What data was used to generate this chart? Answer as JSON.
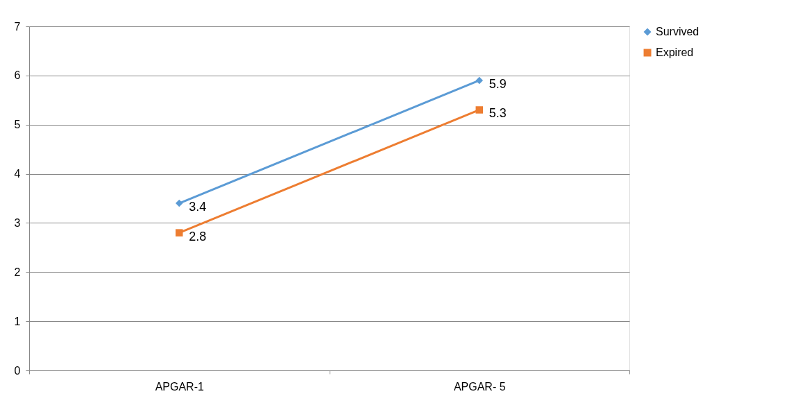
{
  "chart_data": {
    "type": "line",
    "categories": [
      "APGAR-1",
      "APGAR- 5"
    ],
    "series": [
      {
        "name": "Survived",
        "color": "#5b9bd5",
        "marker": "diamond",
        "values": [
          3.4,
          5.9
        ]
      },
      {
        "name": "Expired",
        "color": "#ed7d31",
        "marker": "square",
        "values": [
          2.8,
          5.3
        ]
      }
    ],
    "ylim": [
      0,
      7
    ],
    "yticks": [
      0,
      1,
      2,
      3,
      4,
      5,
      6,
      7
    ],
    "grid": "y",
    "legend": "right",
    "data_labels": true,
    "line_style": "solid"
  }
}
